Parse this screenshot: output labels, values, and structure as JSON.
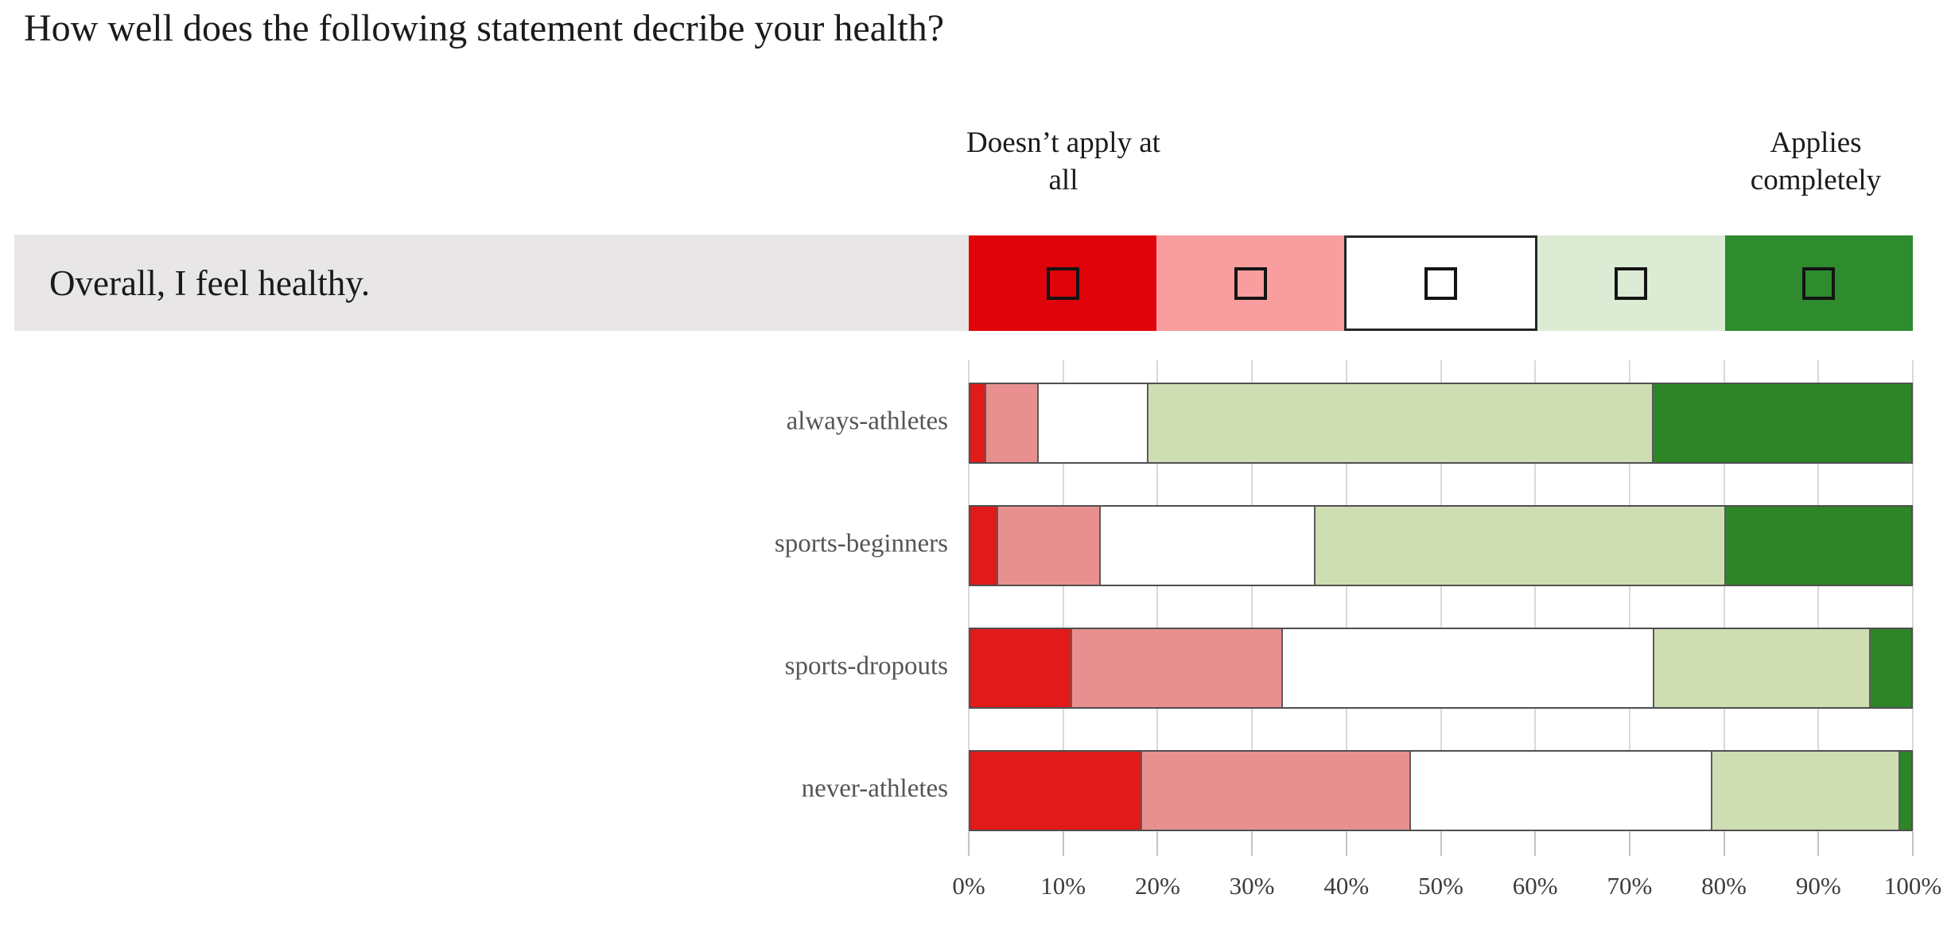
{
  "title": "How well does the following statement decribe your health?",
  "scale_header": {
    "left": {
      "line1": "Doesn’t apply at",
      "line2": "all"
    },
    "right": {
      "line1": "Applies",
      "line2": "completely"
    }
  },
  "statement_row": {
    "statement": "Overall, I feel healthy.",
    "background": "#e8e6e6",
    "cells": [
      {
        "id": "scale-1-doesnt-apply-at-all",
        "color": "#e00309",
        "outlined": false,
        "icon": "checkbox-unchecked-icon"
      },
      {
        "id": "scale-2",
        "color": "#f99d9f",
        "outlined": false,
        "icon": "checkbox-unchecked-icon"
      },
      {
        "id": "scale-3",
        "color": "#ffffff",
        "outlined": true,
        "icon": "checkbox-unchecked-icon"
      },
      {
        "id": "scale-4",
        "color": "#dcebd4",
        "outlined": false,
        "icon": "checkbox-unchecked-icon"
      },
      {
        "id": "scale-5-applies-completely",
        "color": "#2e8b2e",
        "outlined": false,
        "icon": "checkbox-unchecked-icon"
      }
    ]
  },
  "chart_data": {
    "type": "bar",
    "subtype": "horizontal-stacked-100percent",
    "categories": [
      "always-athletes",
      "sports-beginners",
      "sports-dropouts",
      "never-athletes"
    ],
    "series": [
      {
        "name": "1 (Doesn’t apply at all)",
        "color": "#e11a1a",
        "values": [
          1.7,
          3.0,
          10.8,
          18.3
        ]
      },
      {
        "name": "2",
        "color": "#e89090",
        "values": [
          5.6,
          10.9,
          22.4,
          28.5
        ]
      },
      {
        "name": "3",
        "color": "#ffffff",
        "values": [
          11.6,
          22.8,
          39.5,
          32.1
        ]
      },
      {
        "name": "4",
        "color": "#cedeb2",
        "values": [
          53.7,
          43.6,
          23.0,
          19.9
        ]
      },
      {
        "name": "5 (Applies completely)",
        "color": "#2e8527",
        "values": [
          27.4,
          19.7,
          4.3,
          1.2
        ]
      }
    ],
    "x_ticks": [
      "0%",
      "10%",
      "20%",
      "30%",
      "40%",
      "50%",
      "60%",
      "70%",
      "80%",
      "90%",
      "100%"
    ],
    "xlim": [
      0,
      100
    ],
    "grid": true,
    "legend": "none",
    "bar_border_color": "#4f4f4f"
  }
}
